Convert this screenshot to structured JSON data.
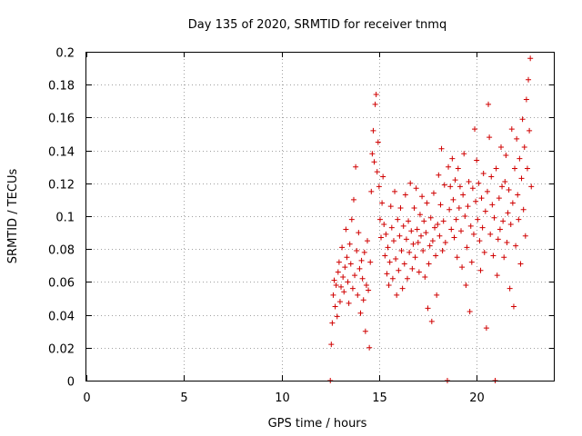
{
  "chart_data": {
    "type": "scatter",
    "title": "Day 135 of 2020, SRMTID for receiver tnmq",
    "xlabel": "GPS time / hours",
    "ylabel": "SRMTID / TECUs",
    "xlim": [
      0,
      24
    ],
    "ylim": [
      0,
      0.2
    ],
    "x_ticks": [
      "0",
      "5",
      "10",
      "15",
      "20"
    ],
    "y_ticks": [
      "0",
      "0.02",
      "0.04",
      "0.06",
      "0.08",
      "0.1",
      "0.12",
      "0.14",
      "0.16",
      "0.18",
      "0.2"
    ],
    "grid": true,
    "marker": "+",
    "color": "#d00000",
    "series": [
      {
        "name": "SRMTID",
        "points": [
          [
            12.5,
            0.0
          ],
          [
            12.55,
            0.022
          ],
          [
            12.6,
            0.035
          ],
          [
            12.65,
            0.052
          ],
          [
            12.7,
            0.061
          ],
          [
            12.75,
            0.045
          ],
          [
            12.8,
            0.058
          ],
          [
            12.85,
            0.039
          ],
          [
            12.9,
            0.066
          ],
          [
            12.95,
            0.072
          ],
          [
            13.0,
            0.048
          ],
          [
            13.05,
            0.057
          ],
          [
            13.1,
            0.081
          ],
          [
            13.15,
            0.063
          ],
          [
            13.2,
            0.054
          ],
          [
            13.25,
            0.069
          ],
          [
            13.3,
            0.092
          ],
          [
            13.35,
            0.075
          ],
          [
            13.4,
            0.06
          ],
          [
            13.45,
            0.047
          ],
          [
            13.5,
            0.083
          ],
          [
            13.55,
            0.071
          ],
          [
            13.6,
            0.098
          ],
          [
            13.65,
            0.056
          ],
          [
            13.7,
            0.11
          ],
          [
            13.75,
            0.064
          ],
          [
            13.8,
            0.13
          ],
          [
            13.85,
            0.079
          ],
          [
            13.9,
            0.052
          ],
          [
            13.95,
            0.09
          ],
          [
            14.0,
            0.068
          ],
          [
            14.05,
            0.041
          ],
          [
            14.1,
            0.073
          ],
          [
            14.15,
            0.062
          ],
          [
            14.2,
            0.049
          ],
          [
            14.25,
            0.078
          ],
          [
            14.3,
            0.03
          ],
          [
            14.35,
            0.058
          ],
          [
            14.4,
            0.085
          ],
          [
            14.45,
            0.055
          ],
          [
            14.5,
            0.02
          ],
          [
            14.55,
            0.072
          ],
          [
            14.6,
            0.115
          ],
          [
            14.65,
            0.138
          ],
          [
            14.7,
            0.152
          ],
          [
            14.75,
            0.133
          ],
          [
            14.8,
            0.168
          ],
          [
            14.85,
            0.174
          ],
          [
            14.9,
            0.127
          ],
          [
            14.95,
            0.145
          ],
          [
            15.0,
            0.118
          ],
          [
            15.05,
            0.098
          ],
          [
            15.1,
            0.087
          ],
          [
            15.15,
            0.108
          ],
          [
            15.2,
            0.124
          ],
          [
            15.25,
            0.095
          ],
          [
            15.3,
            0.076
          ],
          [
            15.35,
            0.089
          ],
          [
            15.4,
            0.065
          ],
          [
            15.45,
            0.081
          ],
          [
            15.5,
            0.058
          ],
          [
            15.55,
            0.072
          ],
          [
            15.6,
            0.106
          ],
          [
            15.65,
            0.093
          ],
          [
            15.7,
            0.062
          ],
          [
            15.75,
            0.085
          ],
          [
            15.8,
            0.115
          ],
          [
            15.85,
            0.074
          ],
          [
            15.9,
            0.052
          ],
          [
            15.95,
            0.098
          ],
          [
            16.0,
            0.067
          ],
          [
            16.05,
            0.088
          ],
          [
            16.1,
            0.105
          ],
          [
            16.15,
            0.079
          ],
          [
            16.2,
            0.056
          ],
          [
            16.25,
            0.094
          ],
          [
            16.3,
            0.071
          ],
          [
            16.35,
            0.113
          ],
          [
            16.4,
            0.086
          ],
          [
            16.45,
            0.062
          ],
          [
            16.5,
            0.097
          ],
          [
            16.55,
            0.078
          ],
          [
            16.6,
            0.12
          ],
          [
            16.65,
            0.091
          ],
          [
            16.7,
            0.068
          ],
          [
            16.75,
            0.083
          ],
          [
            16.8,
            0.105
          ],
          [
            16.85,
            0.075
          ],
          [
            16.9,
            0.117
          ],
          [
            16.95,
            0.092
          ],
          [
            17.0,
            0.084
          ],
          [
            17.05,
            0.066
          ],
          [
            17.1,
            0.101
          ],
          [
            17.15,
            0.088
          ],
          [
            17.2,
            0.112
          ],
          [
            17.25,
            0.079
          ],
          [
            17.3,
            0.097
          ],
          [
            17.35,
            0.063
          ],
          [
            17.4,
            0.09
          ],
          [
            17.45,
            0.108
          ],
          [
            17.5,
            0.044
          ],
          [
            17.55,
            0.071
          ],
          [
            17.6,
            0.082
          ],
          [
            17.65,
            0.099
          ],
          [
            17.7,
            0.036
          ],
          [
            17.75,
            0.085
          ],
          [
            17.8,
            0.114
          ],
          [
            17.85,
            0.093
          ],
          [
            17.9,
            0.076
          ],
          [
            17.95,
            0.052
          ],
          [
            18.0,
            0.095
          ],
          [
            18.05,
            0.125
          ],
          [
            18.1,
            0.088
          ],
          [
            18.15,
            0.107
          ],
          [
            18.2,
            0.141
          ],
          [
            18.25,
            0.079
          ],
          [
            18.3,
            0.097
          ],
          [
            18.35,
            0.119
          ],
          [
            18.4,
            0.084
          ],
          [
            18.5,
            0.0
          ],
          [
            18.55,
            0.13
          ],
          [
            18.6,
            0.104
          ],
          [
            18.65,
            0.118
          ],
          [
            18.7,
            0.092
          ],
          [
            18.75,
            0.135
          ],
          [
            18.8,
            0.11
          ],
          [
            18.85,
            0.087
          ],
          [
            18.9,
            0.122
          ],
          [
            18.95,
            0.098
          ],
          [
            19.0,
            0.075
          ],
          [
            19.05,
            0.129
          ],
          [
            19.1,
            0.105
          ],
          [
            19.15,
            0.118
          ],
          [
            19.2,
            0.091
          ],
          [
            19.25,
            0.069
          ],
          [
            19.3,
            0.113
          ],
          [
            19.35,
            0.138
          ],
          [
            19.4,
            0.1
          ],
          [
            19.45,
            0.058
          ],
          [
            19.5,
            0.081
          ],
          [
            19.55,
            0.106
          ],
          [
            19.6,
            0.121
          ],
          [
            19.65,
            0.042
          ],
          [
            19.7,
            0.094
          ],
          [
            19.75,
            0.072
          ],
          [
            19.8,
            0.117
          ],
          [
            19.85,
            0.089
          ],
          [
            19.9,
            0.153
          ],
          [
            19.95,
            0.109
          ],
          [
            20.0,
            0.134
          ],
          [
            20.05,
            0.098
          ],
          [
            20.1,
            0.12
          ],
          [
            20.15,
            0.085
          ],
          [
            20.2,
            0.067
          ],
          [
            20.25,
            0.111
          ],
          [
            20.3,
            0.093
          ],
          [
            20.35,
            0.126
          ],
          [
            20.4,
            0.078
          ],
          [
            20.45,
            0.103
          ],
          [
            20.5,
            0.032
          ],
          [
            20.55,
            0.115
          ],
          [
            20.6,
            0.168
          ],
          [
            20.65,
            0.148
          ],
          [
            20.7,
            0.089
          ],
          [
            20.75,
            0.124
          ],
          [
            20.8,
            0.107
          ],
          [
            20.85,
            0.076
          ],
          [
            20.9,
            0.099
          ],
          [
            20.95,
            0.0
          ],
          [
            21.0,
            0.129
          ],
          [
            21.05,
            0.064
          ],
          [
            21.1,
            0.086
          ],
          [
            21.15,
            0.111
          ],
          [
            21.2,
            0.092
          ],
          [
            21.25,
            0.142
          ],
          [
            21.3,
            0.118
          ],
          [
            21.35,
            0.097
          ],
          [
            21.4,
            0.075
          ],
          [
            21.45,
            0.121
          ],
          [
            21.5,
            0.137
          ],
          [
            21.55,
            0.084
          ],
          [
            21.6,
            0.102
          ],
          [
            21.65,
            0.116
          ],
          [
            21.7,
            0.056
          ],
          [
            21.75,
            0.095
          ],
          [
            21.8,
            0.153
          ],
          [
            21.85,
            0.108
          ],
          [
            21.9,
            0.045
          ],
          [
            21.95,
            0.129
          ],
          [
            22.0,
            0.082
          ],
          [
            22.05,
            0.147
          ],
          [
            22.1,
            0.113
          ],
          [
            22.15,
            0.098
          ],
          [
            22.2,
            0.135
          ],
          [
            22.25,
            0.071
          ],
          [
            22.3,
            0.123
          ],
          [
            22.35,
            0.159
          ],
          [
            22.4,
            0.104
          ],
          [
            22.45,
            0.142
          ],
          [
            22.5,
            0.088
          ],
          [
            22.55,
            0.171
          ],
          [
            22.6,
            0.129
          ],
          [
            22.65,
            0.183
          ],
          [
            22.7,
            0.152
          ],
          [
            22.75,
            0.196
          ],
          [
            22.8,
            0.118
          ]
        ]
      }
    ]
  }
}
